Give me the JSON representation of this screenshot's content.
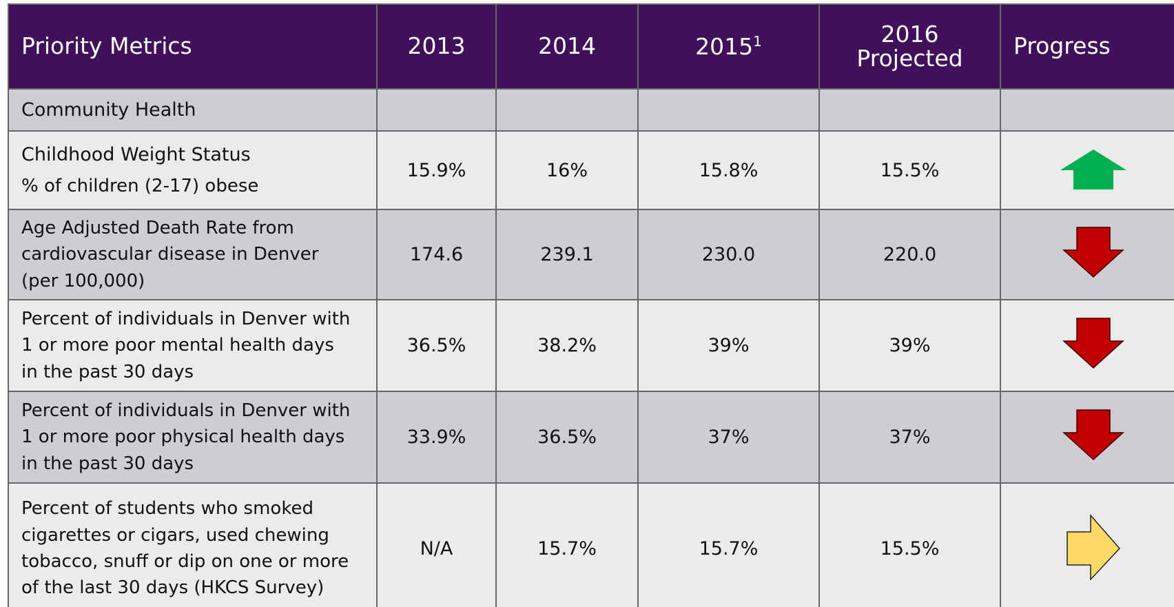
{
  "table": {
    "header": [
      {
        "text": "Priority Metrics"
      },
      {
        "text": "2013"
      },
      {
        "text": "2014"
      },
      {
        "text": "2015",
        "sup": "1"
      },
      {
        "lines": [
          "2016",
          "Projected"
        ]
      },
      {
        "text": "Progress"
      }
    ],
    "section": "Community  Health",
    "rows": [
      {
        "title": "Childhood Weight Status",
        "lines": [
          "% of children (2-17) obese"
        ],
        "values": [
          "15.9%",
          "16%",
          "15.8%",
          "15.5%"
        ],
        "progress": "up"
      },
      {
        "lines": [
          "Age Adjusted Death Rate from",
          "cardiovascular disease in Denver",
          "(per 100,000)"
        ],
        "values": [
          "174.6",
          "239.1",
          "230.0",
          "220.0"
        ],
        "progress": "down"
      },
      {
        "lines": [
          "Percent of individuals in Denver with",
          "1 or more poor mental health days",
          "in the past 30 days"
        ],
        "values": [
          "36.5%",
          "38.2%",
          "39%",
          "39%"
        ],
        "progress": "down"
      },
      {
        "lines": [
          "Percent of individuals in Denver with",
          "1 or more poor physical health days",
          "in the past 30 days"
        ],
        "values": [
          "33.9%",
          "36.5%",
          "37%",
          "37%"
        ],
        "progress": "down"
      },
      {
        "lines": [
          "Percent of students who smoked",
          "cigarettes or cigars, used chewing",
          "tobacco, snuff or dip on one or more",
          "of the last 30 days (HKCS Survey)"
        ],
        "values": [
          "N/A",
          "15.7%",
          "15.7%",
          "15.5%"
        ],
        "progress": "right"
      }
    ]
  }
}
